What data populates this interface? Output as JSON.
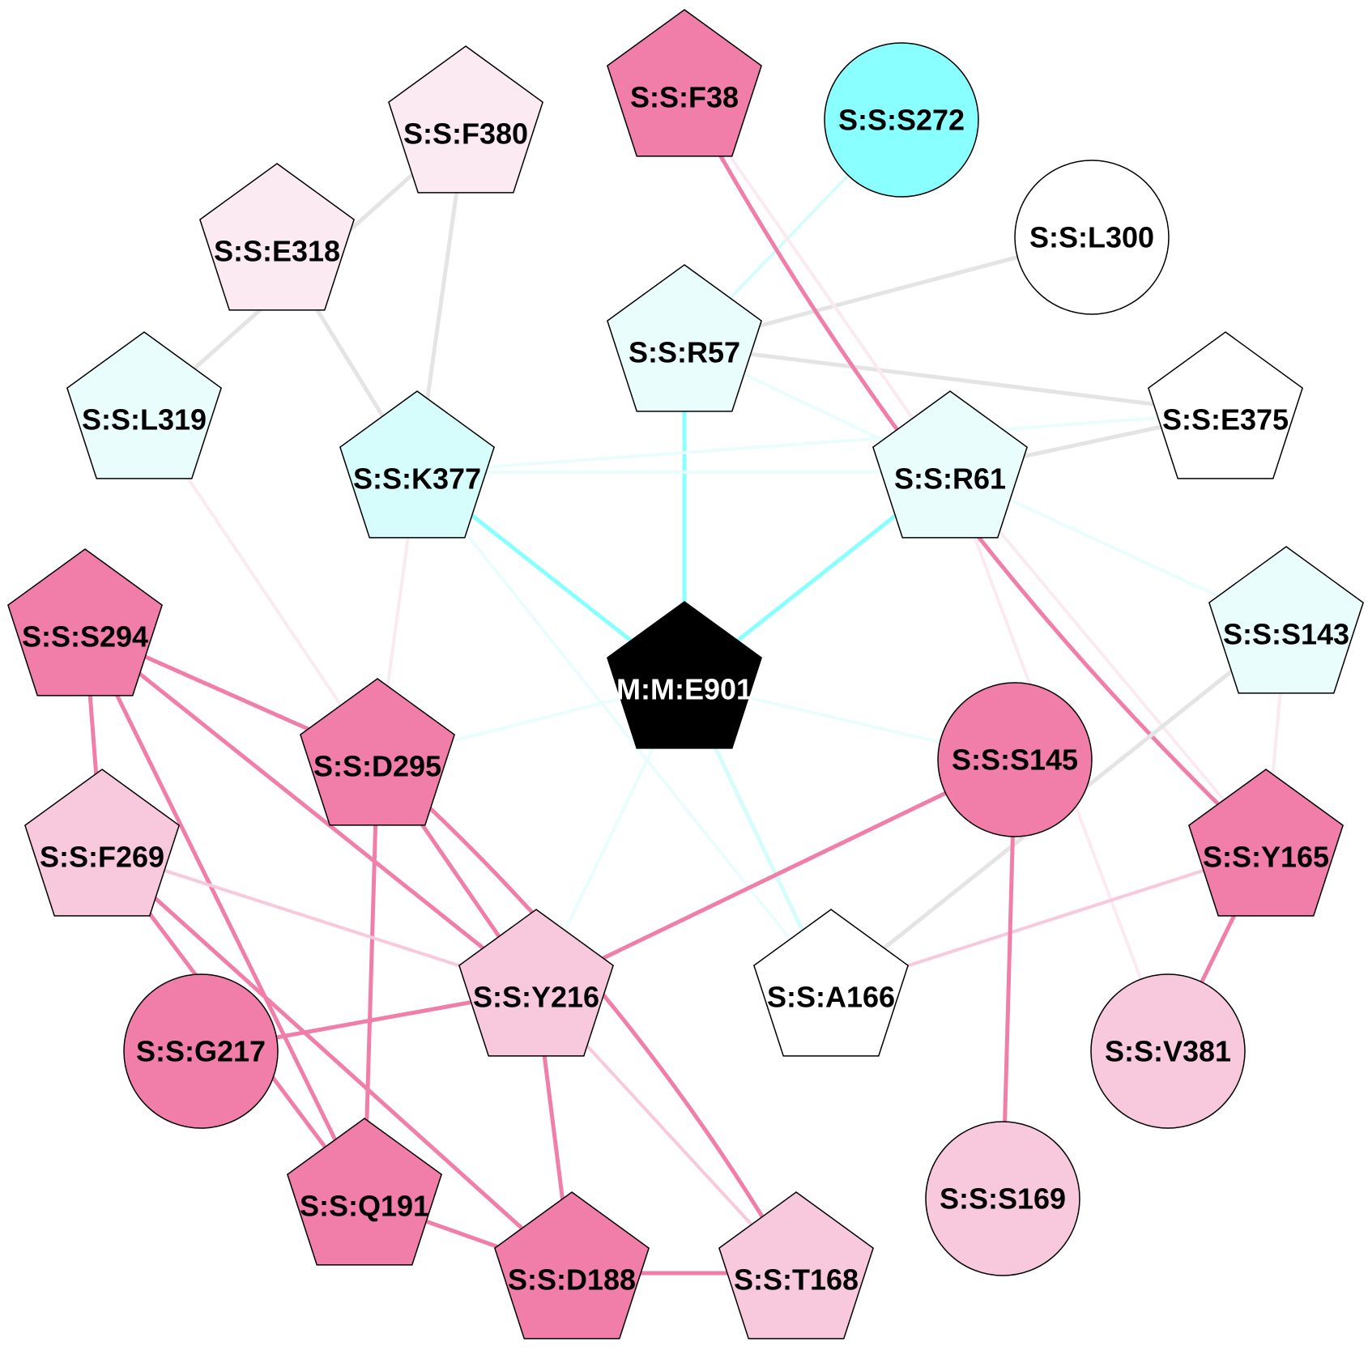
{
  "colors": {
    "pink_strong": "#f07ea9",
    "pink_mid": "#f8c8dc",
    "pink_light": "#fbeaf2",
    "cyan_strong": "#8affff",
    "cyan_light": "#e9fdfd",
    "cyan_mid": "#d6fcfc",
    "white": "#ffffff",
    "black": "#000000",
    "edge_gray": "#e4e4e4"
  },
  "nodes": [
    {
      "id": "F38",
      "label": "S:S:F38",
      "shape": "pentagon",
      "fill": "#f07ea9",
      "text": "#000000"
    },
    {
      "id": "S272",
      "label": "S:S:S272",
      "shape": "circle",
      "fill": "#8affff",
      "text": "#000000"
    },
    {
      "id": "F380",
      "label": "S:S:F380",
      "shape": "pentagon",
      "fill": "#fbeaf2",
      "text": "#000000"
    },
    {
      "id": "E318",
      "label": "S:S:E318",
      "shape": "pentagon",
      "fill": "#fbeaf2",
      "text": "#000000"
    },
    {
      "id": "L300",
      "label": "S:S:L300",
      "shape": "circle",
      "fill": "#ffffff",
      "text": "#000000"
    },
    {
      "id": "R57",
      "label": "S:S:R57",
      "shape": "pentagon",
      "fill": "#e9fdfd",
      "text": "#000000"
    },
    {
      "id": "L319",
      "label": "S:S:L319",
      "shape": "pentagon",
      "fill": "#e9fdfd",
      "text": "#000000"
    },
    {
      "id": "K377",
      "label": "S:S:K377",
      "shape": "pentagon",
      "fill": "#d6fcfc",
      "text": "#000000"
    },
    {
      "id": "R61",
      "label": "S:S:R61",
      "shape": "pentagon",
      "fill": "#e9fdfd",
      "text": "#000000"
    },
    {
      "id": "E375",
      "label": "S:S:E375",
      "shape": "pentagon",
      "fill": "#ffffff",
      "text": "#000000"
    },
    {
      "id": "S143",
      "label": "S:S:S143",
      "shape": "pentagon",
      "fill": "#e9fdfd",
      "text": "#000000"
    },
    {
      "id": "S294",
      "label": "S:S:S294",
      "shape": "pentagon",
      "fill": "#f07ea9",
      "text": "#000000"
    },
    {
      "id": "E901",
      "label": "M:M:E901",
      "shape": "pentagon",
      "fill": "#000000",
      "text": "#ffffff"
    },
    {
      "id": "D295",
      "label": "S:S:D295",
      "shape": "pentagon",
      "fill": "#f07ea9",
      "text": "#000000"
    },
    {
      "id": "S145",
      "label": "S:S:S145",
      "shape": "circle",
      "fill": "#f07ea9",
      "text": "#000000"
    },
    {
      "id": "F269",
      "label": "S:S:F269",
      "shape": "pentagon",
      "fill": "#f8c8dc",
      "text": "#000000"
    },
    {
      "id": "Y165",
      "label": "S:S:Y165",
      "shape": "pentagon",
      "fill": "#f07ea9",
      "text": "#000000"
    },
    {
      "id": "Y216",
      "label": "S:S:Y216",
      "shape": "pentagon",
      "fill": "#f8c8dc",
      "text": "#000000"
    },
    {
      "id": "A166",
      "label": "S:S:A166",
      "shape": "pentagon",
      "fill": "#ffffff",
      "text": "#000000"
    },
    {
      "id": "G217",
      "label": "S:S:G217",
      "shape": "circle",
      "fill": "#f07ea9",
      "text": "#000000"
    },
    {
      "id": "V381",
      "label": "S:S:V381",
      "shape": "circle",
      "fill": "#f8c8dc",
      "text": "#000000"
    },
    {
      "id": "S169",
      "label": "S:S:S169",
      "shape": "circle",
      "fill": "#f8c8dc",
      "text": "#000000"
    },
    {
      "id": "Q191",
      "label": "S:S:Q191",
      "shape": "pentagon",
      "fill": "#f07ea9",
      "text": "#000000"
    },
    {
      "id": "D188",
      "label": "S:S:D188",
      "shape": "pentagon",
      "fill": "#f07ea9",
      "text": "#000000"
    },
    {
      "id": "T168",
      "label": "S:S:T168",
      "shape": "pentagon",
      "fill": "#f8c8dc",
      "text": "#000000"
    }
  ],
  "edges": [
    {
      "source": "E901",
      "target": "R57",
      "color": "#8affff",
      "width": 5
    },
    {
      "source": "E901",
      "target": "K377",
      "color": "#8affff",
      "width": 5
    },
    {
      "source": "E901",
      "target": "R61",
      "color": "#8affff",
      "width": 5
    },
    {
      "source": "E901",
      "target": "A166",
      "color": "#d6fcfc",
      "width": 5
    },
    {
      "source": "E901",
      "target": "D295",
      "color": "#e9fdfd",
      "width": 4
    },
    {
      "source": "E901",
      "target": "S145",
      "color": "#e9fdfd",
      "width": 4
    },
    {
      "source": "E901",
      "target": "Y216",
      "color": "#e9fdfd",
      "width": 4
    },
    {
      "source": "R57",
      "target": "S272",
      "color": "#d6fcfc",
      "width": 4
    },
    {
      "source": "R57",
      "target": "L300",
      "color": "#e4e4e4",
      "width": 5
    },
    {
      "source": "R57",
      "target": "E375",
      "color": "#e4e4e4",
      "width": 5
    },
    {
      "source": "R57",
      "target": "R61",
      "color": "#e9fdfd",
      "width": 4
    },
    {
      "source": "K377",
      "target": "R61",
      "color": "#e9fdfd",
      "width": 4
    },
    {
      "source": "K377",
      "target": "E375",
      "color": "#e9fdfd",
      "width": 4
    },
    {
      "source": "K377",
      "target": "F380",
      "color": "#e4e4e4",
      "width": 5
    },
    {
      "source": "K377",
      "target": "E318",
      "color": "#e4e4e4",
      "width": 5
    },
    {
      "source": "K377",
      "target": "D295",
      "color": "#fbeaf2",
      "width": 4
    },
    {
      "source": "K377",
      "target": "A166",
      "color": "#e9fdfd",
      "width": 4
    },
    {
      "source": "L319",
      "target": "F380",
      "color": "#e4e4e4",
      "width": 5
    },
    {
      "source": "L319",
      "target": "D295",
      "color": "#fbeaf2",
      "width": 4
    },
    {
      "source": "R61",
      "target": "E375",
      "color": "#e4e4e4",
      "width": 5
    },
    {
      "source": "R61",
      "target": "F38",
      "color": "#fbeaf2",
      "width": 4
    },
    {
      "source": "R61",
      "target": "S143",
      "color": "#e9fdfd",
      "width": 4
    },
    {
      "source": "R61",
      "target": "Y165",
      "color": "#fbeaf2",
      "width": 4
    },
    {
      "source": "R61",
      "target": "V381",
      "color": "#fbeaf2",
      "width": 4
    },
    {
      "source": "F38",
      "target": "Y165",
      "color": "#f07ea9",
      "width": 5,
      "curve": 0.08
    },
    {
      "source": "S143",
      "target": "A166",
      "color": "#e4e4e4",
      "width": 5
    },
    {
      "source": "S143",
      "target": "Y165",
      "color": "#fbeaf2",
      "width": 4
    },
    {
      "source": "Y165",
      "target": "A166",
      "color": "#f8c8dc",
      "width": 4
    },
    {
      "source": "Y165",
      "target": "V381",
      "color": "#f07ea9",
      "width": 5
    },
    {
      "source": "S145",
      "target": "Y216",
      "color": "#f07ea9",
      "width": 5
    },
    {
      "source": "S145",
      "target": "S169",
      "color": "#f07ea9",
      "width": 5
    },
    {
      "source": "S294",
      "target": "D295",
      "color": "#f07ea9",
      "width": 5
    },
    {
      "source": "S294",
      "target": "F269",
      "color": "#f07ea9",
      "width": 5
    },
    {
      "source": "S294",
      "target": "Y216",
      "color": "#f07ea9",
      "width": 5
    },
    {
      "source": "S294",
      "target": "Q191",
      "color": "#f07ea9",
      "width": 5
    },
    {
      "source": "D295",
      "target": "Y216",
      "color": "#f07ea9",
      "width": 5
    },
    {
      "source": "D295",
      "target": "Q191",
      "color": "#f07ea9",
      "width": 5
    },
    {
      "source": "D295",
      "target": "T168",
      "color": "#f07ea9",
      "width": 5,
      "curve": -0.08
    },
    {
      "source": "F269",
      "target": "Y216",
      "color": "#f8c8dc",
      "width": 4
    },
    {
      "source": "F269",
      "target": "Q191",
      "color": "#f07ea9",
      "width": 5
    },
    {
      "source": "F269",
      "target": "D188",
      "color": "#f07ea9",
      "width": 5
    },
    {
      "source": "G217",
      "target": "Y216",
      "color": "#f07ea9",
      "width": 5
    },
    {
      "source": "Y216",
      "target": "D188",
      "color": "#f07ea9",
      "width": 5
    },
    {
      "source": "Y216",
      "target": "T168",
      "color": "#f8c8dc",
      "width": 4
    },
    {
      "source": "Q191",
      "target": "D188",
      "color": "#f07ea9",
      "width": 5
    },
    {
      "source": "D188",
      "target": "T168",
      "color": "#f07ea9",
      "width": 5
    }
  ]
}
